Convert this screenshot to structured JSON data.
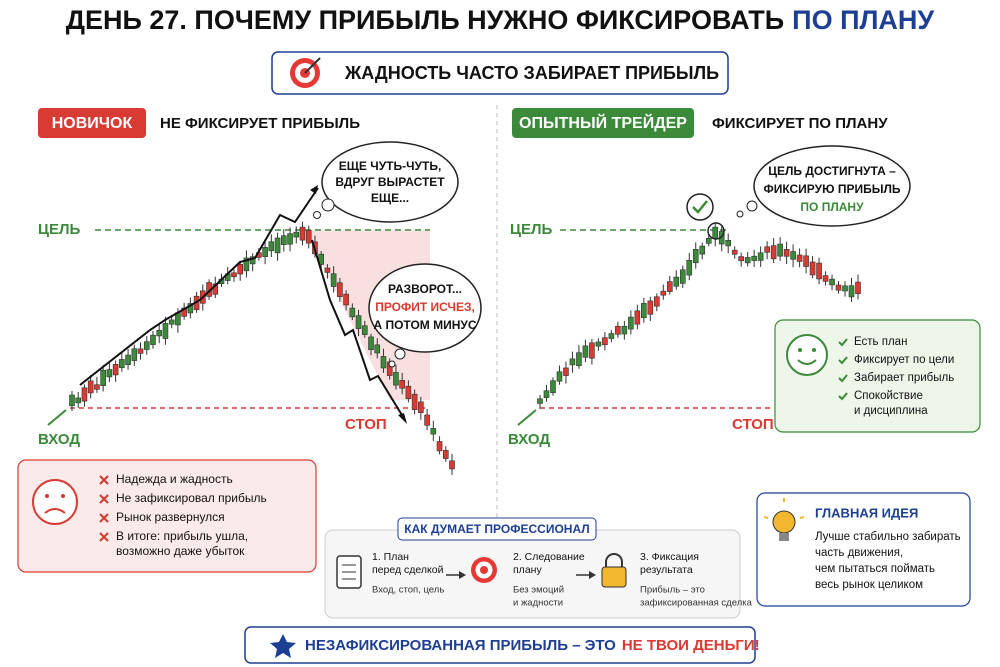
{
  "header": {
    "title": "ДЕНЬ 27. ПОЧЕМУ ПРИБЫЛЬ НУЖНО ФИКСИРОВАТЬ",
    "title_highlight": "ПО ПЛАНУ",
    "subtitle": "ЖАДНОСТЬ ЧАСТО ЗАБИРАЕТ ПРИБЫЛЬ"
  },
  "left": {
    "badge": "НОВИЧОК",
    "caption": "НЕ ФИКСИРУЕТ ПРИБЫЛЬ",
    "target_label": "ЦЕЛЬ",
    "stop_label": "СТОП",
    "entry_label": "ВХОД",
    "bubble_top": [
      "ЕЩЕ ЧУТЬ-ЧУТЬ,",
      "ВДРУГ ВЫРАСТЕТ",
      "ЕЩЕ..."
    ],
    "bubble_reversal": [
      "РАЗВОРОТ...",
      "ПРОФИТ ИСЧЕЗ,",
      "А ПОТОМ МИНУС"
    ],
    "list": [
      "Надежда и жадность",
      "Не зафиксировал прибыль",
      "Рынок развернулся",
      "В итоге: прибыль ушла,",
      "возможно даже убыток"
    ]
  },
  "right": {
    "badge": "ОПЫТНЫЙ ТРЕЙДЕР",
    "caption": "ФИКСИРУЕТ ПО ПЛАНУ",
    "target_label": "ЦЕЛЬ",
    "stop_label": "СТОП",
    "entry_label": "ВХОД",
    "bubble": [
      "ЦЕЛЬ ДОСТИГНУТА –",
      "ФИКСИРУЮ ПРИБЫЛЬ",
      "ПО ПЛАНУ"
    ],
    "list": [
      "Есть план",
      "Фиксирует по цели",
      "Забирает прибыль",
      "Спокойствие",
      "и дисциплина"
    ]
  },
  "process": {
    "title": "КАК ДУМАЕТ ПРОФЕССИОНАЛ",
    "steps": [
      {
        "title": [
          "1. План",
          "перед сделкой"
        ],
        "text": [
          "Вход, стоп, цель"
        ]
      },
      {
        "title": [
          "2. Следование",
          "плану"
        ],
        "text": [
          "Без эмоций",
          "и жадности"
        ]
      },
      {
        "title": [
          "3. Фиксация",
          "результата"
        ],
        "text": [
          "Прибыль – это",
          "зафиксированная сделка"
        ]
      }
    ]
  },
  "idea": {
    "title": "ГЛАВНАЯ ИДЕЯ",
    "lines": [
      "Лучше стабильно забирать",
      "часть движения,",
      "чем пытаться поймать",
      "весь рынок целиком"
    ]
  },
  "footer": {
    "text": "НЕЗАФИКСИРОВАННАЯ ПРИБЫЛЬ – ЭТО",
    "highlight": "НЕ ТВОИ ДЕНЬГИ!"
  }
}
